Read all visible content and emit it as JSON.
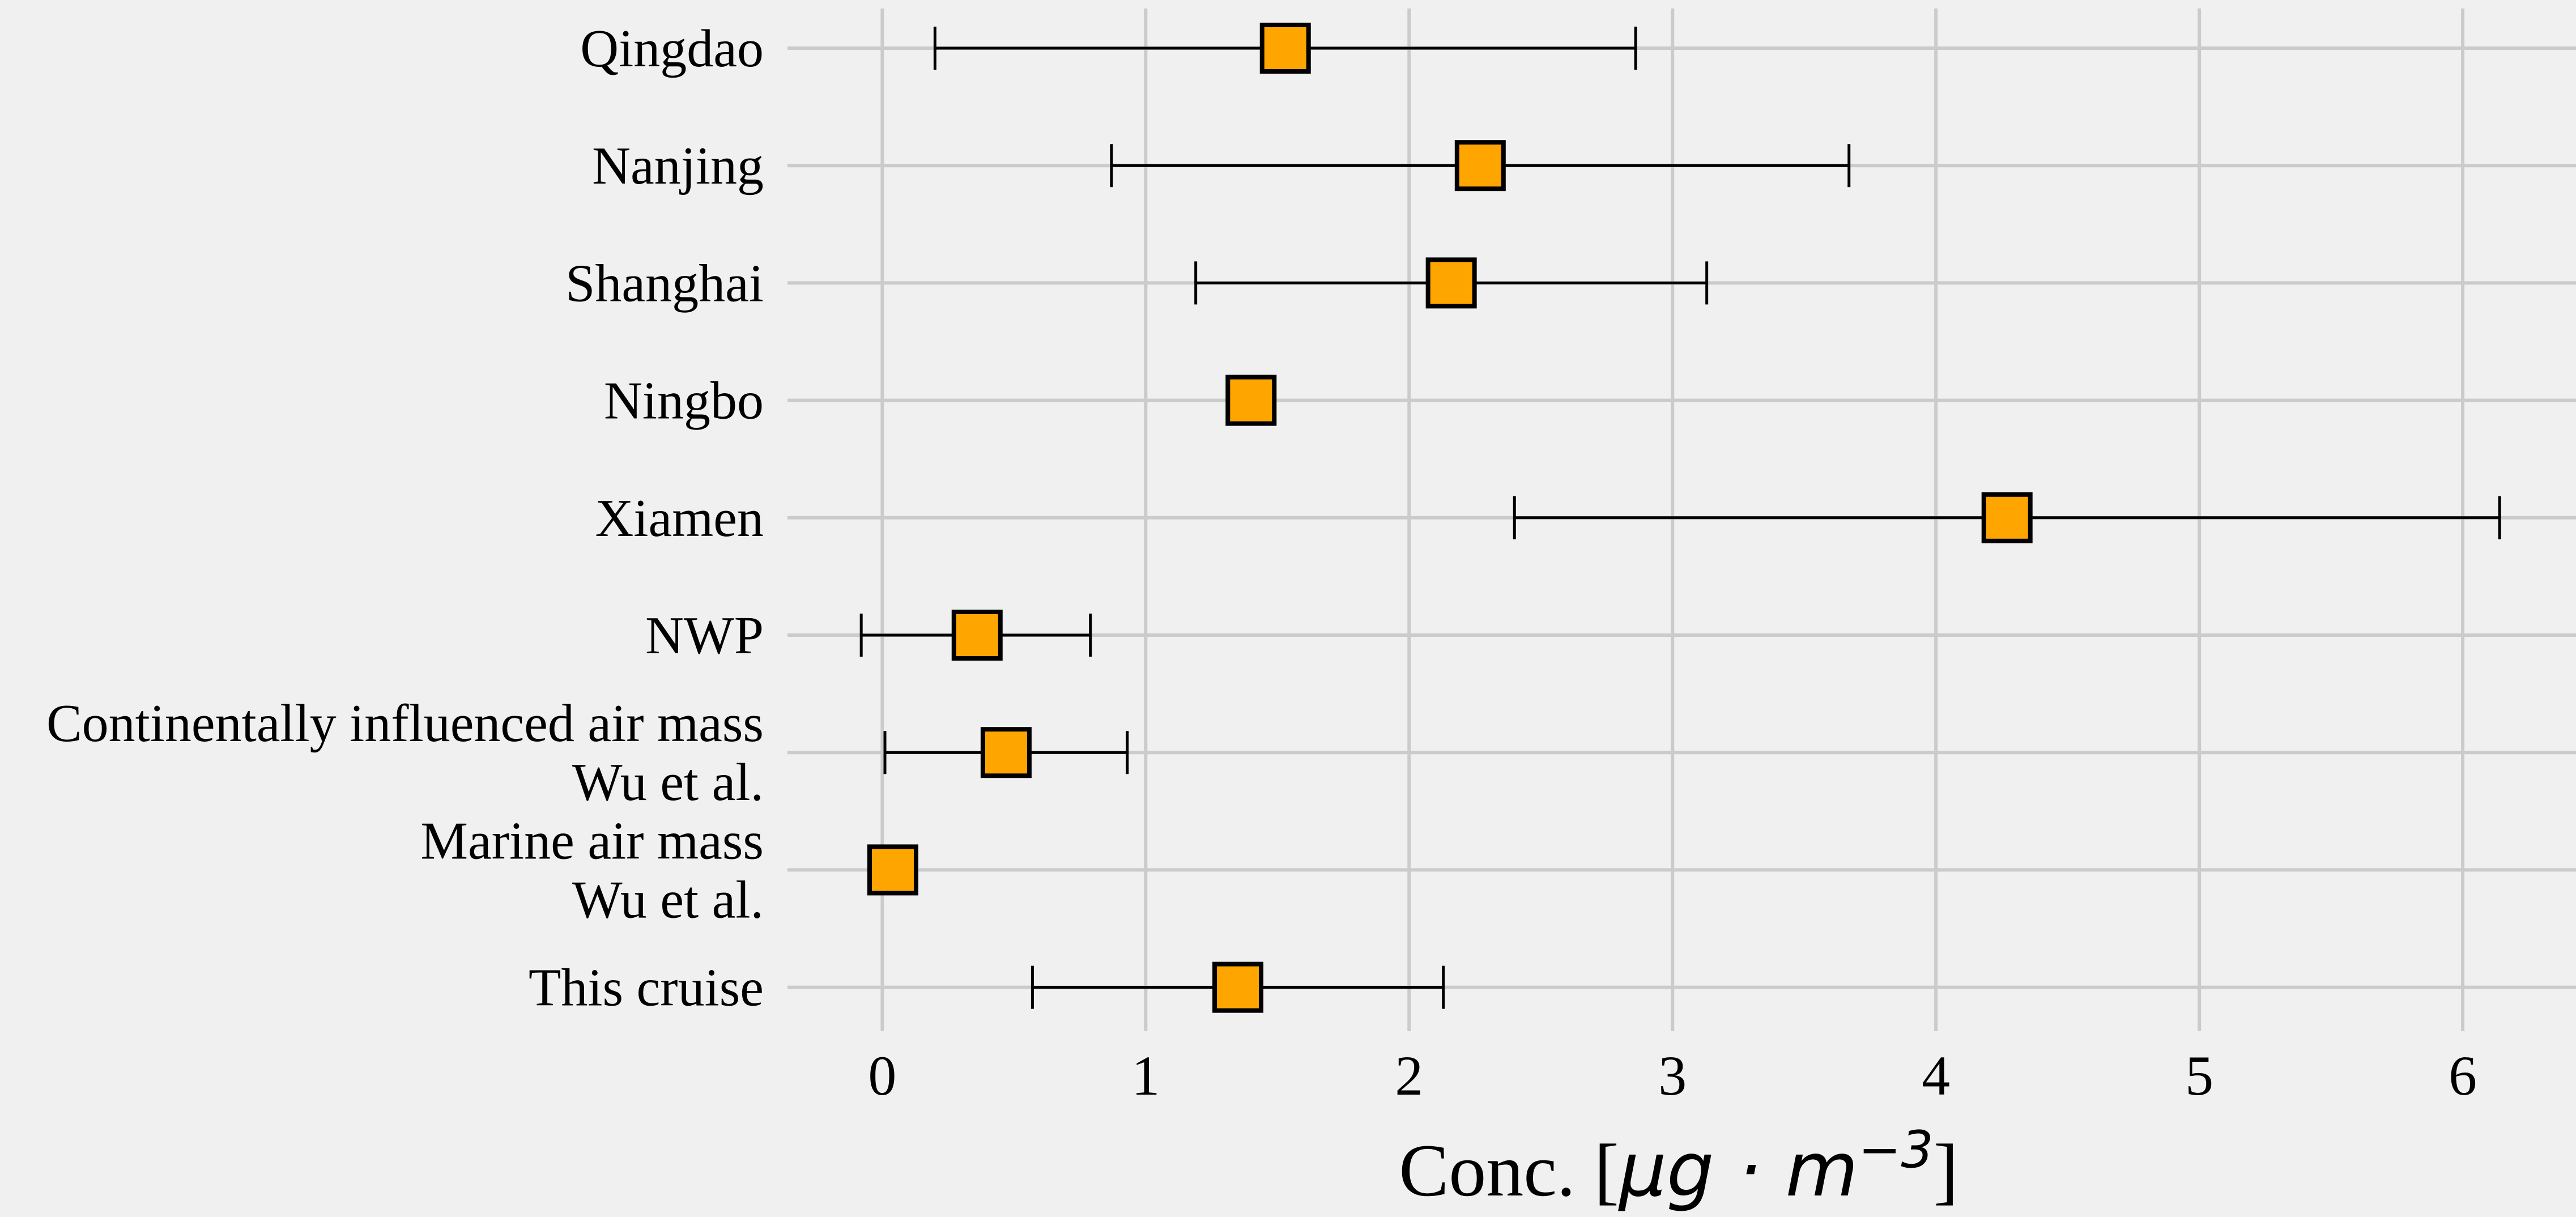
{
  "chart_data": {
    "type": "scatter",
    "xlabel": "Conc. [μg · m⁻³]",
    "xlabel_parts": {
      "prefix": "Conc. [",
      "unit_main": "μg · m",
      "unit_sup": "−3",
      "suffix": "]"
    },
    "xlim": [
      -0.36,
      6.43
    ],
    "xticks": [
      "0",
      "1",
      "2",
      "3",
      "4",
      "5",
      "6"
    ],
    "grid": true,
    "marker": "square",
    "marker_color": "#FFA500",
    "background_color": "#F0F0F0",
    "categories": [
      {
        "label_lines": [
          "Qingdao"
        ],
        "mean": 1.53,
        "low": 0.2,
        "high": 2.86
      },
      {
        "label_lines": [
          "Nanjing"
        ],
        "mean": 2.27,
        "low": 0.87,
        "high": 3.67
      },
      {
        "label_lines": [
          "Shanghai"
        ],
        "mean": 2.16,
        "low": 1.19,
        "high": 3.13
      },
      {
        "label_lines": [
          "Ningbo"
        ],
        "mean": 1.4,
        "low": null,
        "high": null
      },
      {
        "label_lines": [
          "Xiamen"
        ],
        "mean": 4.27,
        "low": 2.4,
        "high": 6.14
      },
      {
        "label_lines": [
          "NWP"
        ],
        "mean": 0.36,
        "low": -0.08,
        "high": 0.79
      },
      {
        "label_lines": [
          "Continentally influenced air mass",
          "Wu et al."
        ],
        "mean": 0.47,
        "low": 0.01,
        "high": 0.93
      },
      {
        "label_lines": [
          "Marine air mass",
          "Wu et al."
        ],
        "mean": 0.04,
        "low": null,
        "high": null
      },
      {
        "label_lines": [
          "This cruise"
        ],
        "mean": 1.35,
        "low": 0.57,
        "high": 2.13
      }
    ]
  }
}
